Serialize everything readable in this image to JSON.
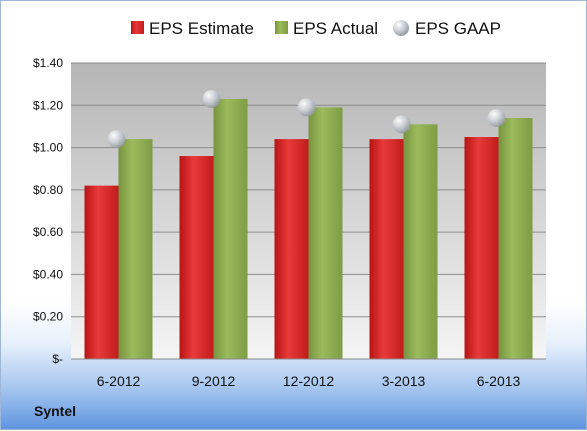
{
  "chart_data": {
    "type": "bar",
    "categories": [
      "6-2012",
      "9-2012",
      "12-2012",
      "3-2013",
      "6-2013"
    ],
    "series": [
      {
        "name": "EPS Estimate",
        "marker": "bar",
        "color": "#d42020",
        "values": [
          0.82,
          0.96,
          1.04,
          1.04,
          1.05
        ]
      },
      {
        "name": "EPS Actual",
        "marker": "bar",
        "color": "#8aaa4c",
        "values": [
          1.04,
          1.23,
          1.19,
          1.11,
          1.14
        ]
      },
      {
        "name": "EPS GAAP",
        "marker": "circle",
        "color": "#c9cdd3",
        "values": [
          1.04,
          1.23,
          1.19,
          1.11,
          1.14
        ]
      }
    ],
    "y_ticks": [
      "$-",
      "$0.20",
      "$0.40",
      "$0.60",
      "$0.80",
      "$1.00",
      "$1.20",
      "$1.40"
    ],
    "ylim": [
      0,
      1.4
    ],
    "grid": true,
    "legend_position": "top",
    "company": "Syntel"
  }
}
